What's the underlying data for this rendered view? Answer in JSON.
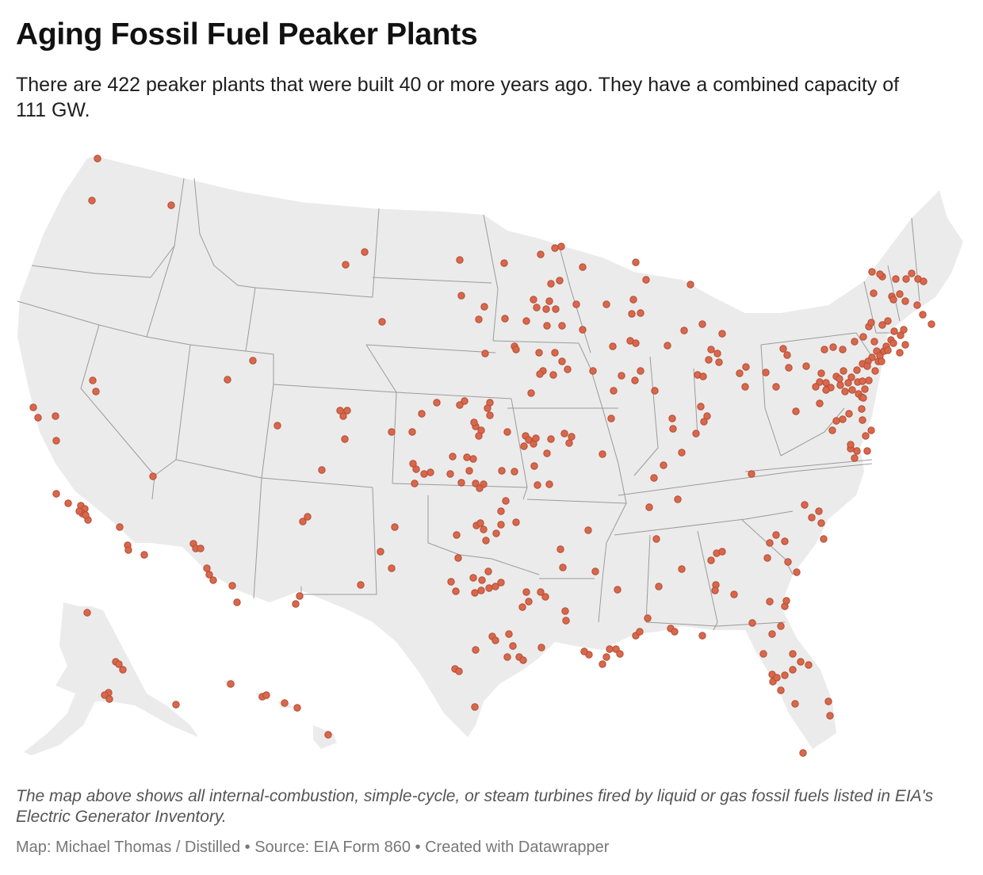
{
  "header": {
    "title": "Aging Fossil Fuel Peaker Plants",
    "subtitle": "There are 422 peaker plants that were built 40 or more years ago. They have a combined capacity of 111 GW."
  },
  "map": {
    "type": "dot-map",
    "region": "United States",
    "land_color": "#ebebeb",
    "border_color": "#9b9b9b",
    "marker_color": "#d9674c",
    "marker_stroke": "#b24d34"
  },
  "footer": {
    "notes": "The map above shows all internal-combustion, simple-cycle, or steam turbines fired by liquid or gas fossil fuels listed in EIA's Electric Generator Inventory.",
    "byline": "Map: Michael Thomas / Distilled",
    "source": "Source: EIA Form 860",
    "credit": "Created with Datawrapper"
  }
}
